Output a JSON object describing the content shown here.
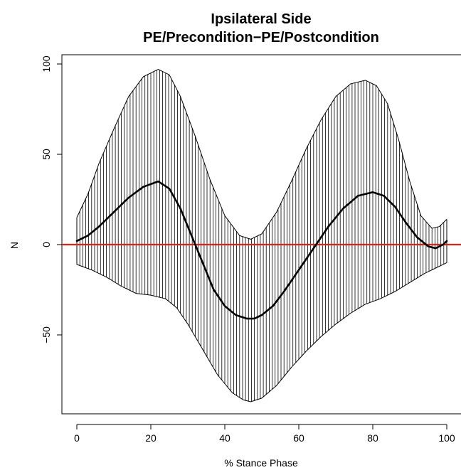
{
  "chart_data": {
    "type": "line",
    "title": "Ipsilateral Side",
    "subtitle": "PE/Precondition−PE/Postcondition",
    "xlabel": "% Stance Phase",
    "ylabel": "N",
    "xlim": [
      0,
      100
    ],
    "ylim": [
      -92,
      102
    ],
    "x_ticks": [
      0,
      20,
      40,
      60,
      80,
      100
    ],
    "y_ticks": [
      -50,
      0,
      50,
      100
    ],
    "grid": false,
    "legend": "none",
    "reference_line": {
      "y": 0,
      "color": "#e0201b"
    },
    "band_fill": "vertical hatching",
    "series": [
      {
        "role": "mean",
        "color": "#000000",
        "x": [
          0,
          3,
          6,
          10,
          14,
          18,
          22,
          25,
          28,
          31,
          34,
          37,
          40,
          43,
          46,
          48,
          50,
          53,
          56,
          60,
          64,
          68,
          72,
          76,
          80,
          83,
          86,
          89,
          92,
          95,
          97,
          99,
          100
        ],
        "y": [
          2,
          5,
          10,
          18,
          26,
          32,
          35,
          31,
          20,
          5,
          -10,
          -25,
          -34,
          -39,
          -41,
          -41,
          -39,
          -34,
          -26,
          -14,
          -2,
          10,
          20,
          27,
          29,
          27,
          21,
          12,
          4,
          -1,
          -2,
          0,
          2
        ]
      },
      {
        "role": "upper",
        "color": "#000000",
        "x": [
          0,
          3,
          6,
          10,
          14,
          18,
          22,
          25,
          28,
          32,
          36,
          40,
          44,
          47,
          50,
          54,
          58,
          62,
          66,
          70,
          74,
          78,
          81,
          84,
          87,
          90,
          93,
          96,
          98,
          100
        ],
        "y": [
          15,
          28,
          45,
          64,
          82,
          93,
          97,
          94,
          82,
          60,
          36,
          16,
          5,
          3,
          6,
          18,
          35,
          53,
          69,
          82,
          89,
          91,
          88,
          78,
          58,
          35,
          16,
          9,
          10,
          14
        ]
      },
      {
        "role": "lower",
        "color": "#000000",
        "x": [
          0,
          4,
          8,
          12,
          16,
          20,
          24,
          27,
          30,
          34,
          38,
          42,
          45,
          47,
          50,
          54,
          58,
          62,
          66,
          70,
          74,
          78,
          82,
          86,
          90,
          94,
          97,
          100
        ],
        "y": [
          -11,
          -14,
          -18,
          -23,
          -27,
          -28,
          -30,
          -35,
          -44,
          -58,
          -72,
          -82,
          -86,
          -87,
          -85,
          -78,
          -68,
          -59,
          -51,
          -44,
          -38,
          -33,
          -30,
          -26,
          -21,
          -16,
          -13,
          -10
        ]
      }
    ]
  }
}
